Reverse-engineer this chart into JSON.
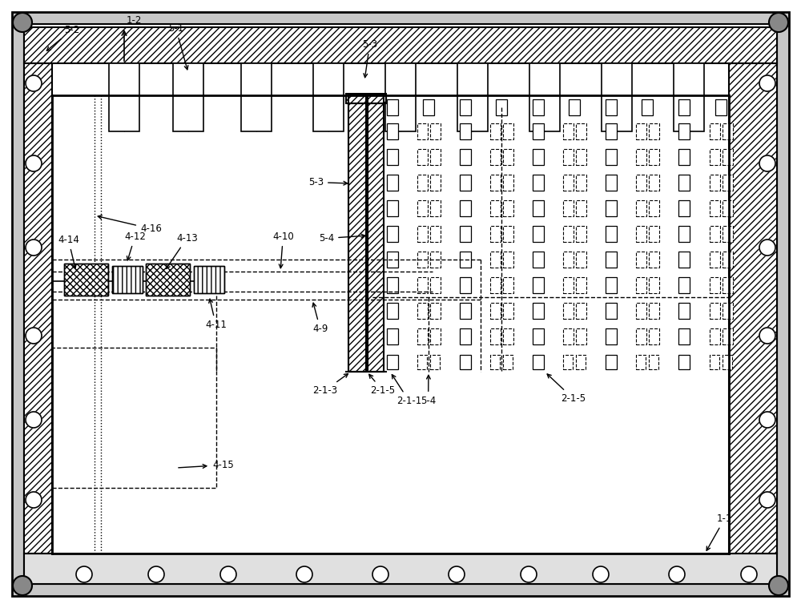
{
  "bg_color": "#ffffff",
  "line_color": "#000000",
  "fig_width": 10.0,
  "fig_height": 7.59
}
